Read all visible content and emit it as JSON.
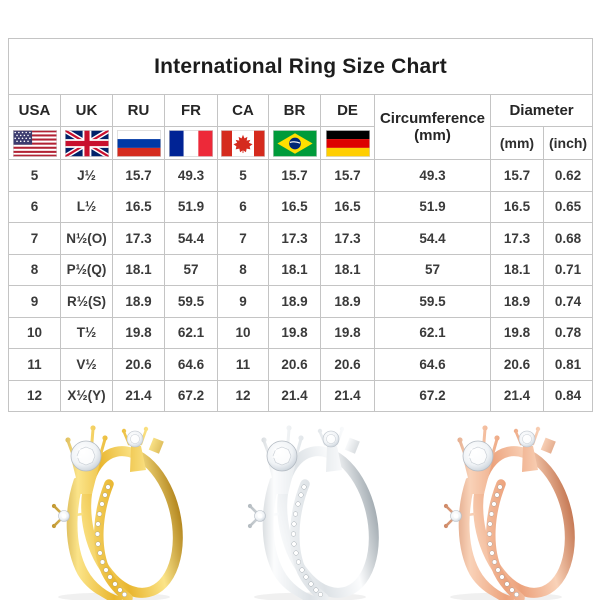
{
  "page": {
    "title": "International Ring Size Chart"
  },
  "table": {
    "countries": [
      {
        "code": "USA",
        "flag": "usa-flag-icon"
      },
      {
        "code": "UK",
        "flag": "uk-flag-icon"
      },
      {
        "code": "RU",
        "flag": "russia-flag-icon"
      },
      {
        "code": "FR",
        "flag": "france-flag-icon"
      },
      {
        "code": "CA",
        "flag": "canada-flag-icon"
      },
      {
        "code": "BR",
        "flag": "brazil-flag-icon"
      },
      {
        "code": "DE",
        "flag": "germany-flag-icon"
      }
    ],
    "circumference_line1": "Circumference",
    "circumference_line2": "(mm)",
    "diameter_label": "Diameter",
    "diameter_mm": "(mm)",
    "diameter_inch": "(inch)",
    "rows": [
      [
        "5",
        "J½",
        "15.7",
        "49.3",
        "5",
        "15.7",
        "15.7",
        "49.3",
        "15.7",
        "0.62"
      ],
      [
        "6",
        "L½",
        "16.5",
        "51.9",
        "6",
        "16.5",
        "16.5",
        "51.9",
        "16.5",
        "0.65"
      ],
      [
        "7",
        "N½(O)",
        "17.3",
        "54.4",
        "7",
        "17.3",
        "17.3",
        "54.4",
        "17.3",
        "0.68"
      ],
      [
        "8",
        "P½(Q)",
        "18.1",
        "57",
        "8",
        "18.1",
        "18.1",
        "57",
        "18.1",
        "0.71"
      ],
      [
        "9",
        "R½(S)",
        "18.9",
        "59.5",
        "9",
        "18.9",
        "18.9",
        "59.5",
        "18.9",
        "0.74"
      ],
      [
        "10",
        "T½",
        "19.8",
        "62.1",
        "10",
        "19.8",
        "19.8",
        "62.1",
        "19.8",
        "0.78"
      ],
      [
        "11",
        "V½",
        "20.6",
        "64.6",
        "11",
        "20.6",
        "20.6",
        "64.6",
        "20.6",
        "0.81"
      ],
      [
        "12",
        "X½(Y)",
        "21.4",
        "67.2",
        "12",
        "21.4",
        "21.4",
        "67.2",
        "21.4",
        "0.84"
      ]
    ]
  },
  "rings": [
    {
      "name": "gold-ring",
      "metal": "gold",
      "colors": {
        "light": "#fbe489",
        "main": "#e9b62f",
        "dark": "#a8770d"
      }
    },
    {
      "name": "silver-ring",
      "metal": "silver",
      "colors": {
        "light": "#fbfcfd",
        "main": "#dde2e6",
        "dark": "#96a0a7"
      }
    },
    {
      "name": "rose-gold-ring",
      "metal": "rose gold",
      "colors": {
        "light": "#f9d2b8",
        "main": "#eca27c",
        "dark": "#bd6a44"
      }
    }
  ]
}
